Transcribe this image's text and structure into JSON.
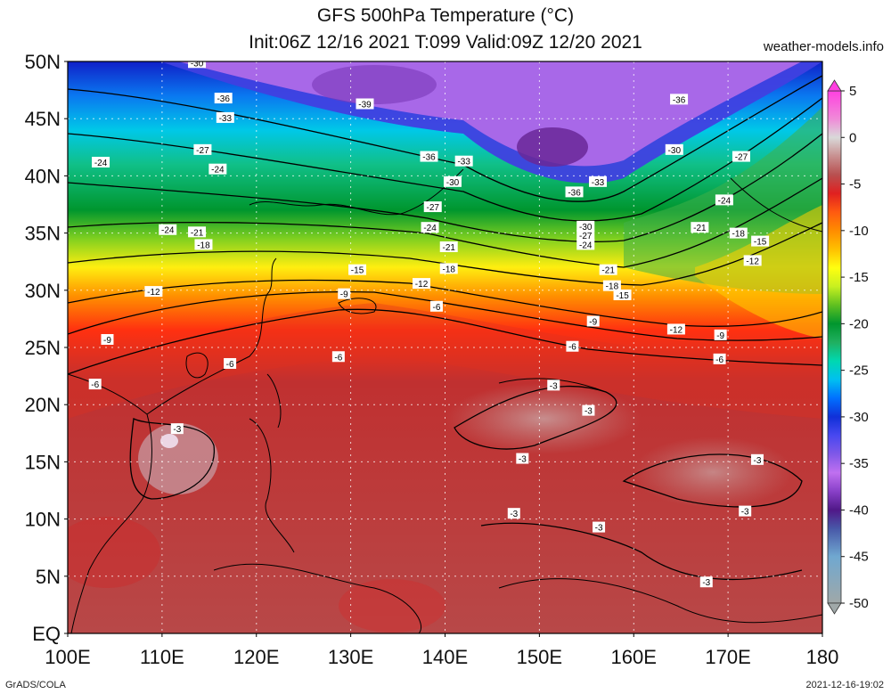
{
  "header": {
    "title": "GFS 500hPa Temperature (°C)",
    "subtitle": "Init:06Z 12/16 2021 T:099 Valid:09Z 12/20 2021",
    "site": "weather-models.info"
  },
  "footer": {
    "left": "GrADS/COLA",
    "right": "2021-12-16-19:02"
  },
  "map": {
    "lat_labels": [
      "50N",
      "45N",
      "40N",
      "35N",
      "30N",
      "25N",
      "20N",
      "15N",
      "10N",
      "5N",
      "EQ"
    ],
    "lon_labels": [
      "100E",
      "110E",
      "120E",
      "130E",
      "140E",
      "150E",
      "160E",
      "170E",
      "180"
    ],
    "contour_labels": [
      {
        "text": "-30",
        "lon": 113.7,
        "lat": 49.9
      },
      {
        "text": "-36",
        "lon": 116.5,
        "lat": 46.8
      },
      {
        "text": "-39",
        "lon": 131.5,
        "lat": 46.3
      },
      {
        "text": "-33",
        "lon": 116.7,
        "lat": 45.1
      },
      {
        "text": "-36",
        "lon": 164.8,
        "lat": 46.7
      },
      {
        "text": "-27",
        "lon": 114.3,
        "lat": 42.3
      },
      {
        "text": "-30",
        "lon": 164.3,
        "lat": 42.3
      },
      {
        "text": "-27",
        "lon": 171.4,
        "lat": 41.7
      },
      {
        "text": "-24",
        "lon": 103.5,
        "lat": 41.2
      },
      {
        "text": "-24",
        "lon": 115.9,
        "lat": 40.6
      },
      {
        "text": "-36",
        "lon": 138.3,
        "lat": 41.7
      },
      {
        "text": "-33",
        "lon": 142.0,
        "lat": 41.3
      },
      {
        "text": "-30",
        "lon": 140.8,
        "lat": 39.5
      },
      {
        "text": "-33",
        "lon": 156.2,
        "lat": 39.5
      },
      {
        "text": "-36",
        "lon": 153.7,
        "lat": 38.6
      },
      {
        "text": "-27",
        "lon": 138.7,
        "lat": 37.3
      },
      {
        "text": "-24",
        "lon": 169.6,
        "lat": 37.9
      },
      {
        "text": "-24",
        "lon": 110.6,
        "lat": 35.3
      },
      {
        "text": "-21",
        "lon": 113.7,
        "lat": 35.1
      },
      {
        "text": "-24",
        "lon": 138.4,
        "lat": 35.5
      },
      {
        "text": "-30",
        "lon": 154.9,
        "lat": 35.6
      },
      {
        "text": "-27",
        "lon": 154.9,
        "lat": 34.8
      },
      {
        "text": "-21",
        "lon": 167.0,
        "lat": 35.5
      },
      {
        "text": "-18",
        "lon": 171.1,
        "lat": 35.0
      },
      {
        "text": "-15",
        "lon": 173.4,
        "lat": 34.3
      },
      {
        "text": "-18",
        "lon": 114.4,
        "lat": 34.0
      },
      {
        "text": "-21",
        "lon": 140.4,
        "lat": 33.8
      },
      {
        "text": "-24",
        "lon": 154.9,
        "lat": 34.0
      },
      {
        "text": "-12",
        "lon": 172.6,
        "lat": 32.6
      },
      {
        "text": "-15",
        "lon": 130.7,
        "lat": 31.8
      },
      {
        "text": "-18",
        "lon": 140.4,
        "lat": 31.9
      },
      {
        "text": "-21",
        "lon": 157.3,
        "lat": 31.8
      },
      {
        "text": "-12",
        "lon": 137.5,
        "lat": 30.6
      },
      {
        "text": "-18",
        "lon": 157.7,
        "lat": 30.4
      },
      {
        "text": "-15",
        "lon": 158.8,
        "lat": 29.6
      },
      {
        "text": "-12",
        "lon": 109.1,
        "lat": 29.9
      },
      {
        "text": "-9",
        "lon": 129.3,
        "lat": 29.7
      },
      {
        "text": "-6",
        "lon": 139.1,
        "lat": 28.6
      },
      {
        "text": "-9",
        "lon": 155.7,
        "lat": 27.3
      },
      {
        "text": "-12",
        "lon": 164.5,
        "lat": 26.6
      },
      {
        "text": "-9",
        "lon": 104.2,
        "lat": 25.7
      },
      {
        "text": "-6",
        "lon": 153.5,
        "lat": 25.1
      },
      {
        "text": "-9",
        "lon": 169.2,
        "lat": 26.1
      },
      {
        "text": "-6",
        "lon": 117.2,
        "lat": 23.6
      },
      {
        "text": "-6",
        "lon": 128.7,
        "lat": 24.2
      },
      {
        "text": "-6",
        "lon": 169.1,
        "lat": 24.0
      },
      {
        "text": "-6",
        "lon": 102.9,
        "lat": 21.8
      },
      {
        "text": "-3",
        "lon": 151.5,
        "lat": 21.7
      },
      {
        "text": "-3",
        "lon": 155.2,
        "lat": 19.5
      },
      {
        "text": "-3",
        "lon": 111.6,
        "lat": 17.9
      },
      {
        "text": "-3",
        "lon": 148.2,
        "lat": 15.3
      },
      {
        "text": "-3",
        "lon": 173.1,
        "lat": 15.2
      },
      {
        "text": "-3",
        "lon": 147.3,
        "lat": 10.5
      },
      {
        "text": "-3",
        "lon": 171.8,
        "lat": 10.7
      },
      {
        "text": "-3",
        "lon": 156.3,
        "lat": 9.3
      },
      {
        "text": "-3",
        "lon": 167.7,
        "lat": 4.5
      }
    ]
  },
  "colorbar": {
    "unit": "°C",
    "tick_labels": [
      "5",
      "0",
      "-5",
      "-10",
      "-15",
      "-20",
      "-25",
      "-30",
      "-35",
      "-40",
      "-45",
      "-50"
    ],
    "stops": [
      {
        "t": 5,
        "color": "#ff40e0"
      },
      {
        "t": 2,
        "color": "#f08ad8"
      },
      {
        "t": 0,
        "color": "#d9d9d9"
      },
      {
        "t": -2,
        "color": "#c89090"
      },
      {
        "t": -4,
        "color": "#b85050"
      },
      {
        "t": -6,
        "color": "#e02020"
      },
      {
        "t": -8,
        "color": "#ff5a10"
      },
      {
        "t": -10,
        "color": "#ff8c00"
      },
      {
        "t": -12,
        "color": "#ffc000"
      },
      {
        "t": -14,
        "color": "#ffff10"
      },
      {
        "t": -16,
        "color": "#c8f020"
      },
      {
        "t": -18,
        "color": "#60c020"
      },
      {
        "t": -20,
        "color": "#00962e"
      },
      {
        "t": -22,
        "color": "#20b060"
      },
      {
        "t": -24,
        "color": "#00d8b0"
      },
      {
        "t": -26,
        "color": "#00c0f0"
      },
      {
        "t": -28,
        "color": "#0070ff"
      },
      {
        "t": -30,
        "color": "#1030d8"
      },
      {
        "t": -32,
        "color": "#4848f0"
      },
      {
        "t": -34,
        "color": "#8058e8"
      },
      {
        "t": -36,
        "color": "#c070f0"
      },
      {
        "t": -38,
        "color": "#8840c8"
      },
      {
        "t": -40,
        "color": "#501888"
      },
      {
        "t": -42,
        "color": "#4858a8"
      },
      {
        "t": -45,
        "color": "#70a8d0"
      },
      {
        "t": -50,
        "color": "#a0a8a8"
      }
    ]
  }
}
